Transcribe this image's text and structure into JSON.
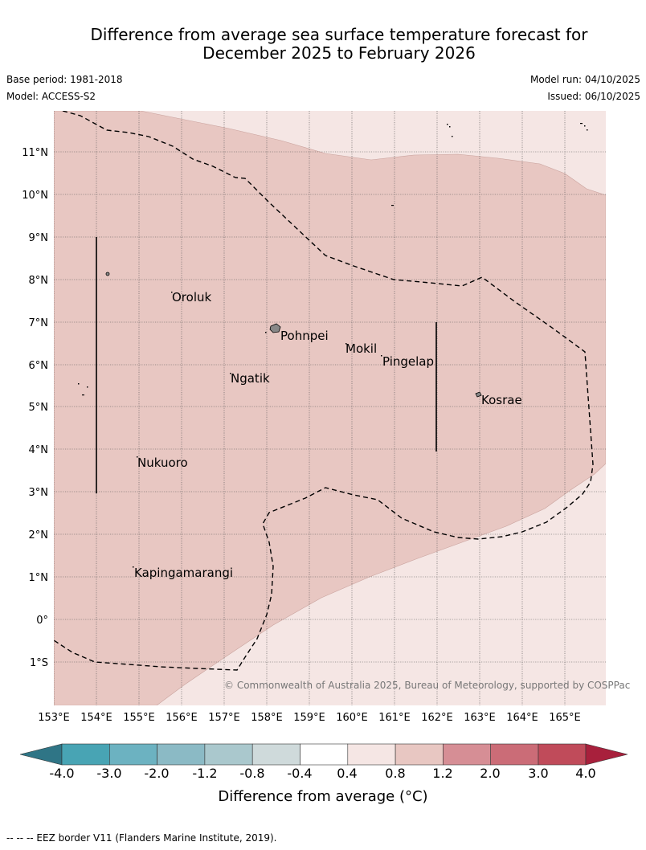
{
  "title_line1": "Difference from average sea surface temperature forecast for",
  "title_line2": "December 2025 to February 2026",
  "meta": {
    "base_period": "Base period: 1981-2018",
    "model": "Model: ACCESS-S2",
    "model_run": "Model run: 04/10/2025",
    "issued": "Issued: 06/10/2025"
  },
  "lon_labels": [
    "153°E",
    "154°E",
    "155°E",
    "156°E",
    "157°E",
    "158°E",
    "159°E",
    "160°E",
    "161°E",
    "162°E",
    "163°E",
    "164°E",
    "165°E"
  ],
  "lat_labels": [
    "11°N",
    "10°N",
    "9°N",
    "8°N",
    "7°N",
    "6°N",
    "5°N",
    "4°N",
    "3°N",
    "2°N",
    "1°N",
    "0°",
    "1°S"
  ],
  "places": {
    "oroluk": "Oroluk",
    "pohnpei": "Pohnpei",
    "mokil": "Mokil",
    "pingelap": "Pingelap",
    "ngatik": "Ngatik",
    "kosrae": "Kosrae",
    "nukuoro": "Nukuoro",
    "kapingamarangi": "Kapingamarangi"
  },
  "copyright": "© Commonwealth of Australia 2025, Bureau of Meteorology, supported by COSPPac",
  "colorbar": {
    "title": "Difference from average (°C)",
    "ticks": [
      "-4.0",
      "-3.0",
      "-2.0",
      "-1.2",
      "-0.8",
      "-0.4",
      "0.4",
      "0.8",
      "1.2",
      "2.0",
      "3.0",
      "4.0"
    ],
    "colors": {
      "extend_low": "#2f7586",
      "b1": "#48a4b4",
      "b2": "#6cb2c1",
      "b3": "#8bbac5",
      "b4": "#aac8cd",
      "b5": "#cfdadb",
      "b6": "#ffffff",
      "b7": "#f5e6e4",
      "b8": "#e8c7c2",
      "b9": "#d68e95",
      "b10": "#cb6c77",
      "b11": "#c04b5a",
      "extend_high": "#a8203c"
    }
  },
  "footnote": "--  --  -- EEZ border V11 (Flanders Marine Institute, 2019)."
}
